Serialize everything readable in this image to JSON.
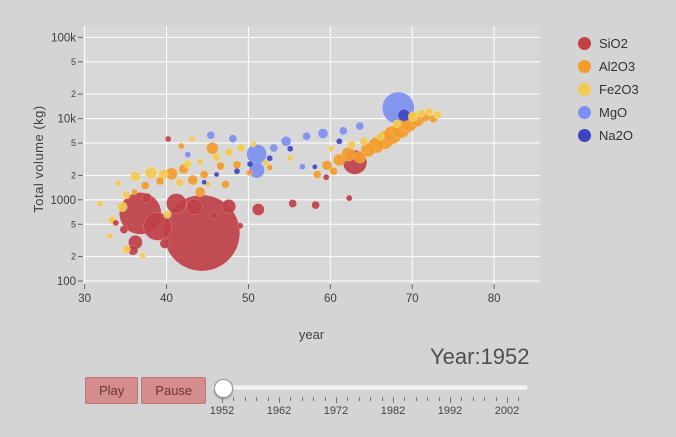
{
  "controls": {
    "year_label": "Year:1952",
    "play_label": "Play",
    "pause_label": "Pause",
    "slider": {
      "current": "1952",
      "tick_labels": [
        "1952",
        "1962",
        "1972",
        "1982",
        "1992",
        "2002"
      ]
    }
  },
  "chart_data": {
    "type": "scatter",
    "subtype": "bubble",
    "xlabel": "year",
    "ylabel": "Total volume (kg)",
    "x_scale": "linear",
    "y_scale": "log",
    "xlim": [
      29.8,
      85.6
    ],
    "ylim": [
      92,
      138000
    ],
    "x_ticks": [
      30,
      40,
      50,
      60,
      70,
      80
    ],
    "y_ticks": [
      {
        "v": 100,
        "label": "100",
        "minor": false
      },
      {
        "v": 200,
        "label": "2",
        "minor": true
      },
      {
        "v": 500,
        "label": "5",
        "minor": true
      },
      {
        "v": 1000,
        "label": "1000",
        "minor": false
      },
      {
        "v": 2000,
        "label": "2",
        "minor": true
      },
      {
        "v": 5000,
        "label": "5",
        "minor": true
      },
      {
        "v": 10000,
        "label": "10k",
        "minor": false
      },
      {
        "v": 20000,
        "label": "2",
        "minor": true
      },
      {
        "v": 50000,
        "label": "5",
        "minor": true
      },
      {
        "v": 100000,
        "label": "100k",
        "minor": false
      }
    ],
    "grid": true,
    "legend_position": "right",
    "colors": {
      "plot_bg": "#d8d8d8",
      "grid": "#ffffff"
    },
    "points_format": "[year_value, volume_kg, marker_radius_px]",
    "series": [
      {
        "name": "SiO2",
        "color": "#c04048",
        "points": [
          [
            44.3,
            390,
            38
          ],
          [
            36.8,
            680,
            21
          ],
          [
            38.9,
            470,
            14
          ],
          [
            41.2,
            900,
            10
          ],
          [
            43.4,
            820,
            8
          ],
          [
            36.2,
            300,
            7
          ],
          [
            39.8,
            290,
            5
          ],
          [
            34.8,
            430,
            4
          ],
          [
            47.6,
            830,
            7
          ],
          [
            51.2,
            760,
            6
          ],
          [
            55.4,
            900,
            4
          ],
          [
            63.0,
            2900,
            12
          ],
          [
            58.2,
            860,
            4
          ],
          [
            62.3,
            1050,
            3
          ],
          [
            40.2,
            5600,
            3
          ],
          [
            37.6,
            1050,
            5
          ],
          [
            33.8,
            520,
            3
          ],
          [
            45.8,
            640,
            4
          ],
          [
            49.0,
            480,
            3
          ],
          [
            59.5,
            1900,
            3
          ],
          [
            35.9,
            240,
            5
          ]
        ]
      },
      {
        "name": "Al2O3",
        "color": "#f39c2c",
        "points": [
          [
            40.6,
            2100,
            6
          ],
          [
            42.1,
            2400,
            5
          ],
          [
            43.2,
            1750,
            5
          ],
          [
            44.6,
            2050,
            4
          ],
          [
            45.6,
            4300,
            6
          ],
          [
            46.6,
            2600,
            4
          ],
          [
            47.2,
            1550,
            4
          ],
          [
            44.1,
            1250,
            5
          ],
          [
            39.2,
            1700,
            4
          ],
          [
            37.4,
            1500,
            4
          ],
          [
            36.1,
            1250,
            3
          ],
          [
            48.6,
            2700,
            4
          ],
          [
            50.1,
            2150,
            3
          ],
          [
            59.6,
            2650,
            5
          ],
          [
            61.1,
            3100,
            6
          ],
          [
            62.2,
            3650,
            7
          ],
          [
            63.6,
            3350,
            6
          ],
          [
            64.6,
            4100,
            7
          ],
          [
            65.6,
            4700,
            8
          ],
          [
            66.6,
            5400,
            9
          ],
          [
            67.6,
            6300,
            9
          ],
          [
            68.6,
            7400,
            9
          ],
          [
            69.6,
            8600,
            8
          ],
          [
            70.6,
            9700,
            7
          ],
          [
            71.6,
            10600,
            5
          ],
          [
            72.6,
            9900,
            4
          ],
          [
            60.4,
            2250,
            4
          ],
          [
            58.4,
            2050,
            4
          ],
          [
            41.8,
            4600,
            3
          ],
          [
            52.6,
            2500,
            3
          ]
        ]
      },
      {
        "name": "Fe2O3",
        "color": "#f3cb52",
        "points": [
          [
            33.4,
            560,
            4
          ],
          [
            34.6,
            820,
            5
          ],
          [
            35.1,
            1150,
            4
          ],
          [
            33.1,
            360,
            3
          ],
          [
            36.2,
            1950,
            5
          ],
          [
            38.1,
            2150,
            6
          ],
          [
            39.6,
            2050,
            5
          ],
          [
            41.6,
            1650,
            4
          ],
          [
            42.6,
            2750,
            4
          ],
          [
            44.1,
            2950,
            3
          ],
          [
            45.1,
            1550,
            3
          ],
          [
            46.1,
            3350,
            4
          ],
          [
            47.6,
            3850,
            4
          ],
          [
            49.1,
            4350,
            4
          ],
          [
            50.6,
            4850,
            3
          ],
          [
            43.1,
            5600,
            3
          ],
          [
            35.1,
            245,
            4
          ],
          [
            37.1,
            205,
            3
          ],
          [
            40.1,
            660,
            4
          ],
          [
            52.1,
            2850,
            3
          ],
          [
            55.1,
            3250,
            3
          ],
          [
            60.1,
            4250,
            3
          ],
          [
            62.6,
            4750,
            4
          ],
          [
            64.1,
            5250,
            4
          ],
          [
            66.1,
            6050,
            4
          ],
          [
            68.1,
            8600,
            4
          ],
          [
            70.1,
            10600,
            5
          ],
          [
            71.1,
            11600,
            4
          ],
          [
            72.1,
            12100,
            4
          ],
          [
            73.1,
            11100,
            4
          ],
          [
            34.1,
            1600,
            3
          ],
          [
            31.9,
            900,
            3
          ]
        ]
      },
      {
        "name": "MgO",
        "color": "#7d8ff0",
        "points": [
          [
            51.0,
            3650,
            10
          ],
          [
            51.0,
            2320,
            8
          ],
          [
            68.3,
            13500,
            16
          ],
          [
            54.6,
            5250,
            5
          ],
          [
            57.1,
            6050,
            4
          ],
          [
            59.1,
            6550,
            5
          ],
          [
            61.6,
            7050,
            4
          ],
          [
            48.1,
            5650,
            4
          ],
          [
            45.4,
            6250,
            4
          ],
          [
            56.6,
            2550,
            3
          ],
          [
            63.6,
            8100,
            4
          ],
          [
            53.1,
            4350,
            4
          ],
          [
            42.6,
            3600,
            3
          ]
        ]
      },
      {
        "name": "Na2O",
        "color": "#3d46be",
        "points": [
          [
            69.0,
            11000,
            6
          ],
          [
            48.6,
            2250,
            3
          ],
          [
            50.2,
            2750,
            3
          ],
          [
            52.6,
            3250,
            3
          ],
          [
            46.1,
            2050,
            2.5
          ],
          [
            55.1,
            4250,
            3
          ],
          [
            58.1,
            2550,
            2.5
          ],
          [
            44.6,
            1650,
            2.5
          ],
          [
            61.1,
            5250,
            3
          ]
        ]
      }
    ]
  }
}
